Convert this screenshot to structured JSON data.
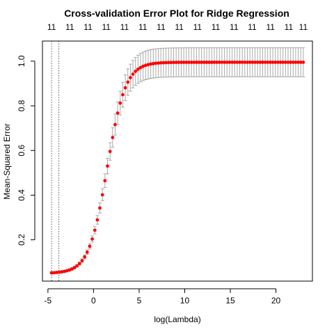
{
  "chart_data": {
    "type": "scatter",
    "title": "Cross-validation Error Plot for Ridge Regression",
    "xlabel": "log(Lambda)",
    "ylabel": "Mean-Squared Error",
    "xlim": [
      -5.6,
      24.0
    ],
    "ylim": [
      0.015,
      1.09
    ],
    "xticks": [
      -5,
      0,
      5,
      10,
      15,
      20
    ],
    "yticks": [
      0.2,
      0.4,
      0.6,
      0.8,
      1.0
    ],
    "ytick_labels": [
      "0.2",
      "0.4",
      "0.6",
      "0.8",
      "1.0"
    ],
    "top_axis": {
      "label_value": "11",
      "positions": [
        -4.6,
        -2.6,
        -0.6,
        1.4,
        3.4,
        5.4,
        7.4,
        9.4,
        11.4,
        13.4,
        15.4,
        17.4,
        19.4,
        21.4,
        23.0
      ]
    },
    "vertical_reference_lines": [
      -4.6,
      -3.8
    ],
    "lambda_range": [
      -4.6,
      23.0
    ],
    "n_points": 100,
    "curve": {
      "min": 0.05,
      "max": 0.995,
      "midpoint": 1.5,
      "scale": 1.0
    },
    "error_band": {
      "low": 0.004,
      "high": 0.065
    },
    "colors": {
      "points": "#ff0000",
      "error_bars": "#a9a9a9",
      "axis": "#000000",
      "ref_lines": "#555555"
    }
  }
}
